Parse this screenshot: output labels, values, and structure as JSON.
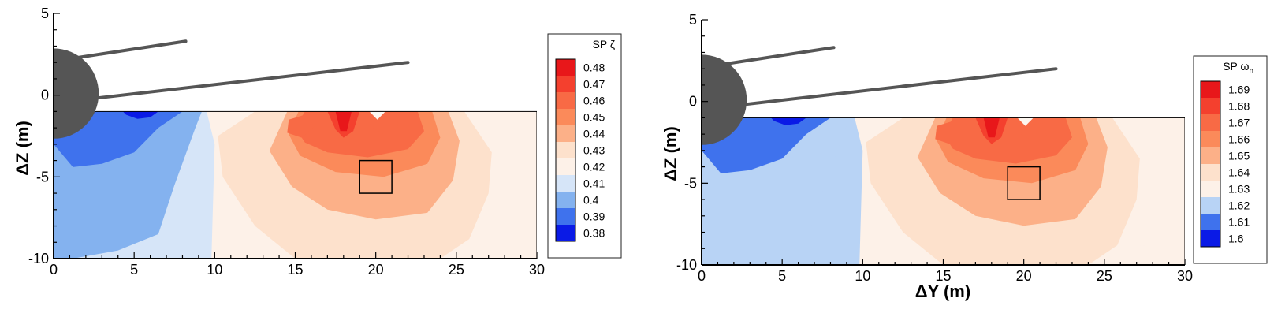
{
  "chart_data": [
    {
      "type": "heatmap",
      "title": "",
      "xlabel": "",
      "ylabel": "ΔZ (m)",
      "xlim": [
        0,
        30
      ],
      "ylim": [
        -10,
        5
      ],
      "xticks": [
        0,
        5,
        10,
        15,
        20,
        25,
        30
      ],
      "yticks": [
        -10,
        -5,
        0,
        5
      ],
      "xtick_labels": [
        "0",
        "5",
        "10",
        "15",
        "20",
        "25",
        "30"
      ],
      "ytick_labels": [
        "-10",
        "-5",
        "0",
        "5"
      ],
      "legend": {
        "title": "SP ζ",
        "placement": "right",
        "levels": [
          0.48,
          0.47,
          0.46,
          0.45,
          0.44,
          0.43,
          0.42,
          0.41,
          0.4,
          0.39,
          0.38
        ],
        "labels": [
          "0.48",
          "0.47",
          "0.46",
          "0.45",
          "0.44",
          "0.43",
          "0.42",
          "0.41",
          "0.4",
          "0.39",
          "0.38"
        ],
        "colors": [
          "#e8171a",
          "#f4402e",
          "#f86a45",
          "#fb8a5a",
          "#fcb088",
          "#fde1cc",
          "#fdf1e8",
          "#d6e5f8",
          "#84b2ef",
          "#3f72ed",
          "#0a1ae6"
        ]
      },
      "field": {
        "extent_x": [
          0,
          30
        ],
        "extent_y": [
          -10,
          -1
        ],
        "background_level": 0.42,
        "hotspot": {
          "x": 18,
          "y": -1
        }
      },
      "marker_box": {
        "x0": 19,
        "x1": 21,
        "y0": -6,
        "y1": -4
      },
      "hub": {
        "center": [
          0,
          0.1
        ],
        "radius_x": 2.8
      },
      "blades": [
        {
          "from": [
            1.5,
            2.3
          ],
          "to": [
            8.2,
            3.3
          ]
        },
        {
          "from": [
            2.5,
            -0.2
          ],
          "to": [
            22,
            2
          ]
        }
      ]
    },
    {
      "type": "heatmap",
      "title": "",
      "xlabel": "ΔY (m)",
      "ylabel": "ΔZ (m)",
      "xlim": [
        0,
        30
      ],
      "ylim": [
        -10,
        5
      ],
      "xticks": [
        0,
        5,
        10,
        15,
        20,
        25,
        30
      ],
      "yticks": [
        -10,
        -5,
        0,
        5
      ],
      "xtick_labels": [
        "0",
        "5",
        "10",
        "15",
        "20",
        "25",
        "30"
      ],
      "ytick_labels": [
        "-10",
        "-5",
        "0",
        "5"
      ],
      "legend": {
        "title": "SP ω",
        "title_subscript": "n",
        "placement": "right",
        "levels": [
          1.69,
          1.68,
          1.67,
          1.66,
          1.65,
          1.64,
          1.63,
          1.62,
          1.61,
          1.6
        ],
        "labels": [
          "1.69",
          "1.68",
          "1.67",
          "1.66",
          "1.65",
          "1.64",
          "1.63",
          "1.62",
          "1.61",
          "1.6"
        ],
        "colors": [
          "#e8171a",
          "#f4402e",
          "#f86a45",
          "#fb8a5a",
          "#fcb088",
          "#fde1cc",
          "#fdf1e8",
          "#b8d3f5",
          "#3f72ed",
          "#0a1ae6"
        ]
      },
      "field": {
        "extent_x": [
          0,
          30
        ],
        "extent_y": [
          -10,
          -1
        ],
        "background_level": 1.63,
        "hotspot": {
          "x": 18,
          "y": -1
        }
      },
      "marker_box": {
        "x0": 19,
        "x1": 21,
        "y0": -6,
        "y1": -4
      },
      "hub": {
        "center": [
          0,
          0.1
        ],
        "radius_x": 2.8
      },
      "blades": [
        {
          "from": [
            1.5,
            2.3
          ],
          "to": [
            8.2,
            3.3
          ]
        },
        {
          "from": [
            2.5,
            -0.2
          ],
          "to": [
            22,
            2
          ]
        }
      ]
    }
  ]
}
